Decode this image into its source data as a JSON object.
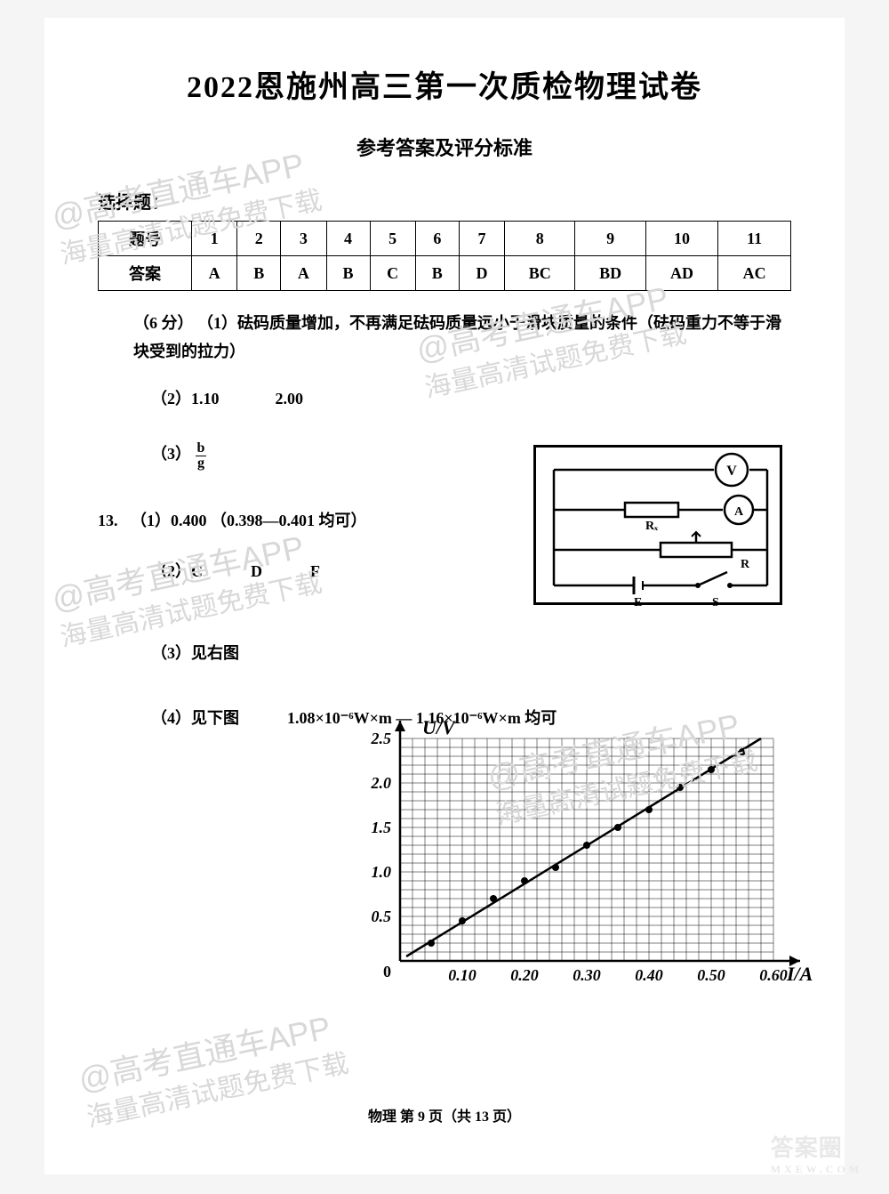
{
  "title": "2022恩施州高三第一次质检物理试卷",
  "subtitle": "参考答案及评分标准",
  "section_label": "选择题：",
  "answer_table": {
    "header_label": "题号",
    "row_label": "答案",
    "numbers": [
      "1",
      "2",
      "3",
      "4",
      "5",
      "6",
      "7",
      "8",
      "9",
      "10",
      "11"
    ],
    "answers": [
      "A",
      "B",
      "A",
      "B",
      "C",
      "B",
      "D",
      "BC",
      "BD",
      "AD",
      "AC"
    ]
  },
  "q12": {
    "prefix": "（6 分）",
    "part1": "（1）砝码质量增加，不再满足砝码质量远小于滑块质量的条件（砝码重力不等于滑块受到的拉力）",
    "part2a": "（2）1.10",
    "part2b": "2.00",
    "part3_label": "（3）",
    "part3_num": "b",
    "part3_den": "g"
  },
  "q13": {
    "label": "13.",
    "part1": "（1）0.400 （0.398—0.401 均可）",
    "part2": "（2）C　　　D　　　F",
    "part3": "（3）见右图",
    "part4": "（4）见下图　　　1.08×10⁻⁶W×m — 1.16×10⁻⁶W×m 均可"
  },
  "circuit": {
    "voltmeter": "V",
    "ammeter": "A",
    "rx": "Rₓ",
    "r": "R",
    "emf": "E",
    "switch": "S"
  },
  "graph": {
    "ylabel": "U/V",
    "xlabel": "I/A",
    "ylim": [
      0,
      2.5
    ],
    "yticks": [
      "0.5",
      "1.0",
      "1.5",
      "2.0",
      "2.5"
    ],
    "xlim": [
      0,
      0.6
    ],
    "xticks": [
      "0.10",
      "0.20",
      "0.30",
      "0.40",
      "0.50",
      "0.60"
    ],
    "grid_major_x": 6,
    "grid_major_y": 5,
    "minor_per_major": 5,
    "line_start": [
      0.01,
      0.05
    ],
    "line_end": [
      0.58,
      2.5
    ],
    "points": [
      [
        0.05,
        0.2
      ],
      [
        0.1,
        0.45
      ],
      [
        0.15,
        0.7
      ],
      [
        0.2,
        0.9
      ],
      [
        0.25,
        1.05
      ],
      [
        0.3,
        1.3
      ],
      [
        0.35,
        1.5
      ],
      [
        0.4,
        1.7
      ],
      [
        0.45,
        1.95
      ],
      [
        0.5,
        2.15
      ],
      [
        0.55,
        2.35
      ]
    ],
    "colors": {
      "axis": "#000000",
      "grid": "#000000",
      "line": "#000000",
      "point": "#000000",
      "background": "#ffffff"
    },
    "line_width": 2.5,
    "point_radius": 4
  },
  "watermark": {
    "line1": "@高考直通车APP",
    "line2": "海量高清试题免费下载"
  },
  "footer": "物理 第 9 页（共 13 页）",
  "corner": {
    "big": "答案圈",
    "small": "MXEW.COM"
  }
}
